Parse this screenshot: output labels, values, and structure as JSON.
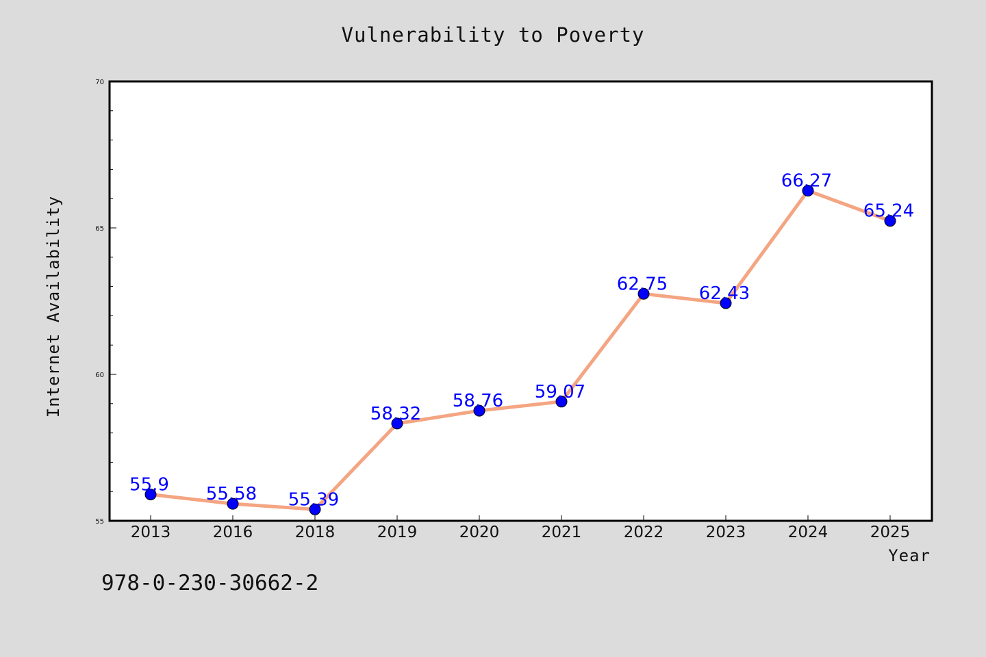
{
  "chart_data": {
    "type": "line",
    "title": "Vulnerability to Poverty",
    "xlabel": "Year",
    "ylabel": "Internet Availability",
    "categories": [
      "2013",
      "2016",
      "2018",
      "2019",
      "2020",
      "2021",
      "2022",
      "2023",
      "2024",
      "2025"
    ],
    "series": [
      {
        "values": [
          55.9,
          55.58,
          55.39,
          58.32,
          58.76,
          59.07,
          62.75,
          62.43,
          66.27,
          65.24
        ]
      }
    ],
    "data_labels": [
      "55.9",
      "55.58",
      "55.39",
      "58.32",
      "58.76",
      "59.07",
      "62.75",
      "62.43",
      "66.27",
      "65.24"
    ],
    "ylim": [
      55,
      70
    ],
    "yticks": [
      "55",
      "60",
      "65",
      "70"
    ],
    "grid": false,
    "legend": "none",
    "colors": {
      "line": "#f4a582",
      "marker": "#0000ff",
      "data_label": "#0000ff",
      "background": "#dcdcdc",
      "plot_area": "#ffffff"
    }
  },
  "footer": {
    "text": "978-0-230-30662-2"
  }
}
